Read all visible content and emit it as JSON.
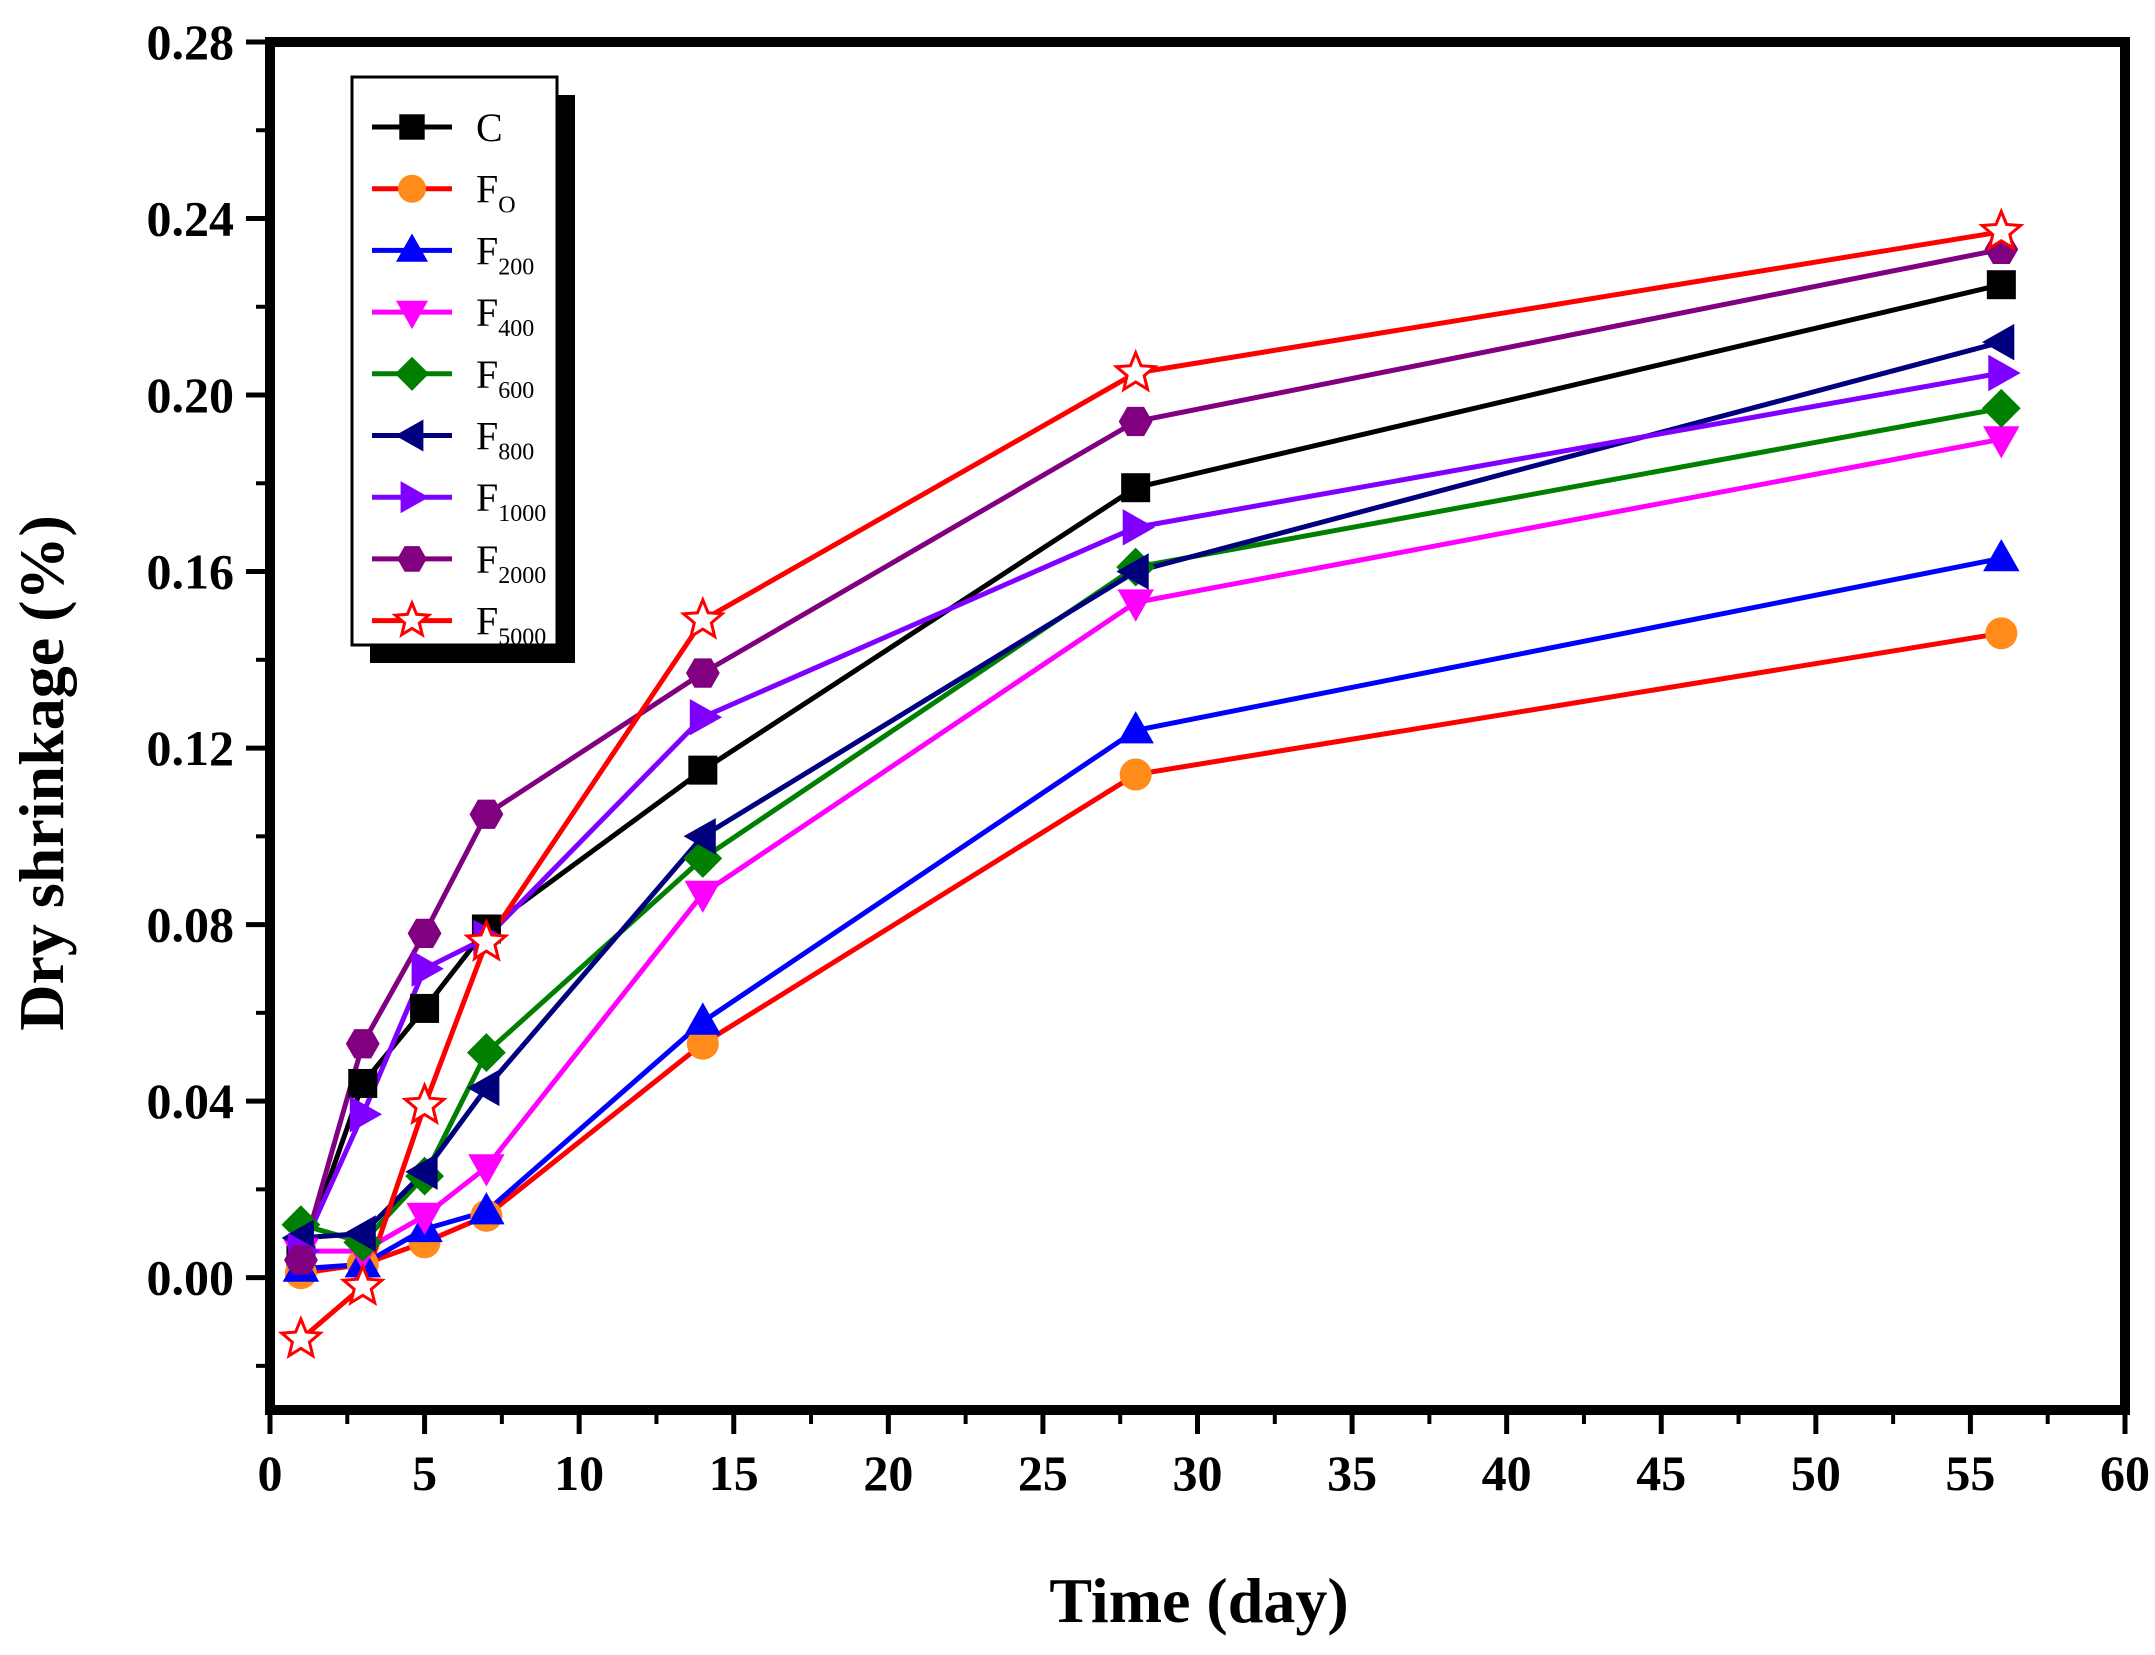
{
  "chart_data": {
    "type": "line",
    "title": "",
    "xlabel": "Time (day)",
    "ylabel": "Dry shrinkage (%)",
    "xlim": [
      0,
      60
    ],
    "ylim": [
      -0.03,
      0.28
    ],
    "xticks": [
      0,
      5,
      10,
      15,
      20,
      25,
      30,
      35,
      40,
      45,
      50,
      55,
      60
    ],
    "yticks": [
      0.0,
      0.04,
      0.08,
      0.12,
      0.16,
      0.2,
      0.24,
      0.28
    ],
    "xtick_labels": [
      "0",
      "5",
      "10",
      "15",
      "20",
      "25",
      "30",
      "35",
      "40",
      "45",
      "50",
      "55",
      "60"
    ],
    "ytick_labels": [
      "0.00",
      "0.04",
      "0.08",
      "0.12",
      "0.16",
      "0.20",
      "0.24",
      "0.28"
    ],
    "legend_position": "top-left",
    "grid": false,
    "x": [
      1,
      3,
      5,
      7,
      14,
      28,
      56
    ],
    "series": [
      {
        "name": "C",
        "label_main": "C",
        "label_sub": "",
        "line_color": "#000000",
        "marker": "square",
        "marker_fill": "#000000",
        "marker_stroke": "#000000",
        "values": [
          0.004,
          0.044,
          0.061,
          0.079,
          0.115,
          0.179,
          0.225
        ]
      },
      {
        "name": "FO",
        "label_main": "F",
        "label_sub": "O",
        "line_color": "#ff0000",
        "marker": "circle",
        "marker_fill": "#ff8c1a",
        "marker_stroke": "#ff8c1a",
        "values": [
          0.001,
          0.003,
          0.008,
          0.014,
          0.053,
          0.114,
          0.146
        ]
      },
      {
        "name": "F200",
        "label_main": "F",
        "label_sub": "200",
        "line_color": "#0000ff",
        "marker": "triangle-up",
        "marker_fill": "#0000ff",
        "marker_stroke": "#0000ff",
        "values": [
          0.002,
          0.003,
          0.011,
          0.015,
          0.058,
          0.124,
          0.163
        ]
      },
      {
        "name": "F400",
        "label_main": "F",
        "label_sub": "400",
        "line_color": "#ff00ff",
        "marker": "triangle-down",
        "marker_fill": "#ff00ff",
        "marker_stroke": "#ff00ff",
        "values": [
          0.006,
          0.006,
          0.014,
          0.025,
          0.087,
          0.153,
          0.19
        ]
      },
      {
        "name": "F600",
        "label_main": "F",
        "label_sub": "600",
        "line_color": "#007f00",
        "marker": "diamond",
        "marker_fill": "#007f00",
        "marker_stroke": "#007f00",
        "values": [
          0.012,
          0.008,
          0.023,
          0.051,
          0.095,
          0.161,
          0.197
        ]
      },
      {
        "name": "F800",
        "label_main": "F",
        "label_sub": "800",
        "line_color": "#00007f",
        "marker": "triangle-left",
        "marker_fill": "#00007f",
        "marker_stroke": "#00007f",
        "values": [
          0.009,
          0.01,
          0.024,
          0.043,
          0.1,
          0.16,
          0.212
        ]
      },
      {
        "name": "F1000",
        "label_main": "F",
        "label_sub": "1000",
        "line_color": "#8000ff",
        "marker": "triangle-right",
        "marker_fill": "#8000ff",
        "marker_stroke": "#8000ff",
        "values": [
          0.006,
          0.037,
          0.07,
          0.077,
          0.127,
          0.17,
          0.205
        ]
      },
      {
        "name": "F2000",
        "label_main": "F",
        "label_sub": "2000",
        "line_color": "#800080",
        "marker": "hexagon",
        "marker_fill": "#800080",
        "marker_stroke": "#800080",
        "values": [
          0.004,
          0.053,
          0.078,
          0.105,
          0.137,
          0.194,
          0.233
        ]
      },
      {
        "name": "F5000",
        "label_main": "F",
        "label_sub": "5000",
        "line_color": "#ff0000",
        "marker": "star",
        "marker_fill": "#ffffff",
        "marker_stroke": "#ff0000",
        "values": [
          -0.014,
          -0.002,
          0.039,
          0.076,
          0.149,
          0.205,
          0.237
        ]
      }
    ]
  }
}
